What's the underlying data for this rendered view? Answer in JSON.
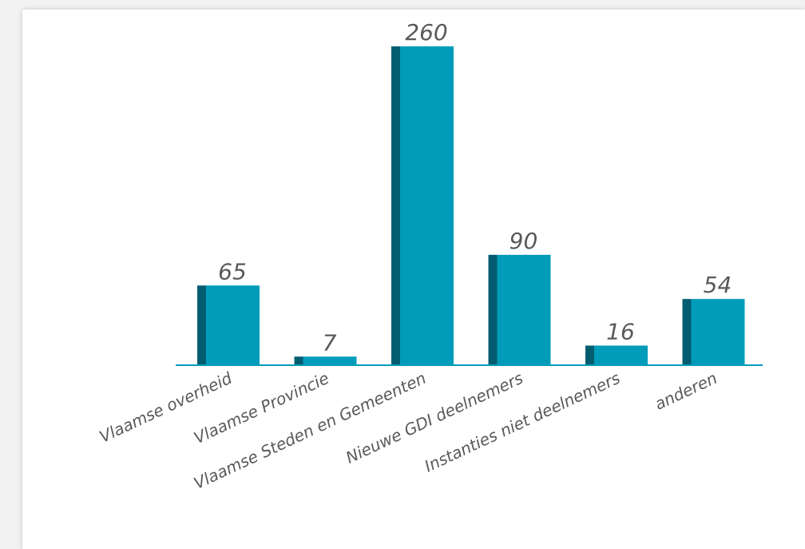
{
  "chart_data": {
    "type": "bar",
    "categories": [
      "Vlaamse overheid",
      "Vlaamse Provincie",
      "Vlaamse Steden en Gemeenten",
      "Nieuwe GDI deelnemers",
      "Instanties niet deelnemers",
      "anderen"
    ],
    "values": [
      65,
      7,
      260,
      90,
      16,
      54
    ],
    "data_labels": [
      "65",
      "7",
      "260",
      "90",
      "16",
      "54"
    ],
    "title": "",
    "xlabel": "",
    "ylabel": "",
    "ylim": [
      0,
      260
    ],
    "grid": false,
    "legend": "none",
    "colors": {
      "bar_face": "#009cba",
      "bar_side": "#035d70",
      "axis": "#009cba",
      "text": "#595959"
    }
  }
}
